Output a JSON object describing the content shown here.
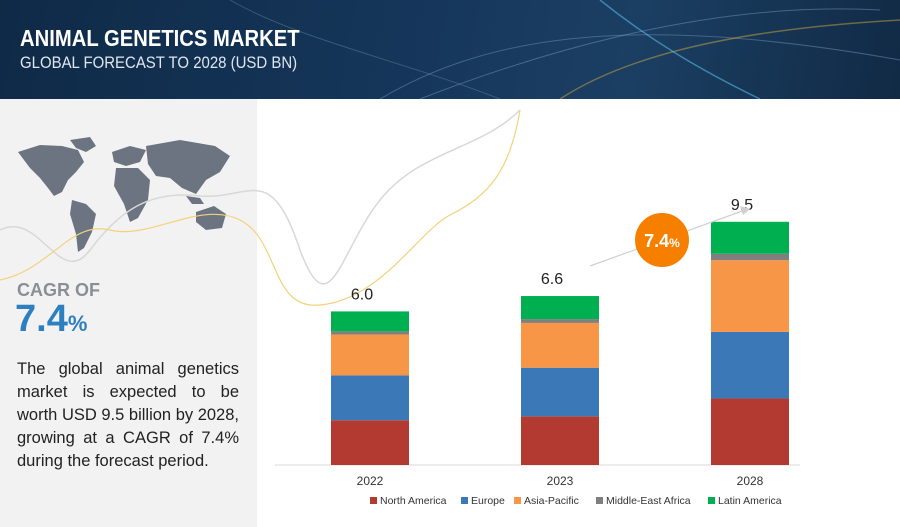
{
  "header": {
    "title": "ANIMAL GENETICS MARKET",
    "subtitle": "GLOBAL FORECAST TO 2028 (USD BN)"
  },
  "sidebar": {
    "cagr_label": "CAGR OF",
    "cagr_value": "7.4",
    "cagr_unit": "%",
    "description": "The global animal genetics market is expected to be worth USD 9.5 billion by 2028, growing at a CAGR of 7.4% during the forecast period."
  },
  "chart_data": {
    "type": "bar",
    "stacked": true,
    "title": "ANIMAL GENETICS MARKET – GLOBAL FORECAST TO 2028 (USD BN)",
    "categories": [
      "2022",
      "2023",
      "2028"
    ],
    "totals": [
      6.0,
      6.6,
      9.5
    ],
    "total_labels": [
      "6.0",
      "6.6",
      "9.5"
    ],
    "series": [
      {
        "name": "North America",
        "color": "#b33a30",
        "values": [
          1.75,
          1.9,
          2.6
        ]
      },
      {
        "name": "Europe",
        "color": "#3a78b8",
        "values": [
          1.75,
          1.9,
          2.6
        ]
      },
      {
        "name": "Asia-Pacific",
        "color": "#f79646",
        "values": [
          1.6,
          1.75,
          2.8
        ]
      },
      {
        "name": "Middle-East Africa",
        "color": "#7f7f7f",
        "values": [
          0.12,
          0.15,
          0.25
        ]
      },
      {
        "name": "Latin America",
        "color": "#00b050",
        "values": [
          0.78,
          0.9,
          1.25
        ]
      }
    ],
    "annotation": {
      "value": "7.4",
      "unit": "%",
      "color": "#f77f00"
    },
    "legend": "bottom",
    "grid": false,
    "ylim": [
      0,
      10
    ]
  }
}
